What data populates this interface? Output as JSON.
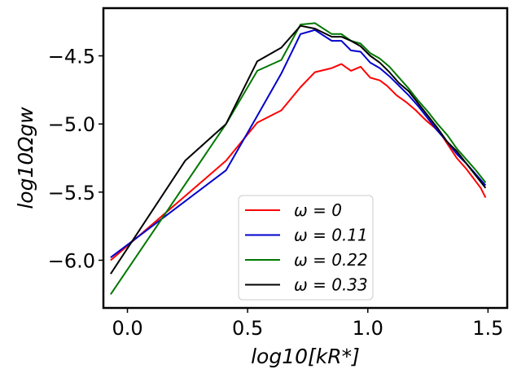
{
  "chart_data": {
    "type": "line",
    "title": "",
    "xlabel": "log10[kR*]",
    "ylabel": "log10Ωgw",
    "xlim": [
      -0.1,
      1.58
    ],
    "ylim": [
      -6.35,
      -4.15
    ],
    "xticks": [
      0.0,
      0.5,
      1.0,
      1.5
    ],
    "xtick_labels": [
      "0.0",
      "0.5",
      "1.0",
      "1.5"
    ],
    "yticks": [
      -6.0,
      -5.5,
      -5.0,
      -4.5
    ],
    "ytick_labels": [
      "−6.0",
      "−5.5",
      "−5.0",
      "−4.5"
    ],
    "grid": false,
    "legend_position": "lower-center",
    "series": [
      {
        "name": "ω = 0",
        "color": "#ff0000",
        "x": [
          -0.07,
          0.41,
          0.54,
          0.64,
          0.72,
          0.78,
          0.85,
          0.89,
          0.93,
          0.97,
          1.01,
          1.05,
          1.08,
          1.12,
          1.16,
          1.2,
          1.24,
          1.28,
          1.31,
          1.34,
          1.37,
          1.41,
          1.44,
          1.47,
          1.49
        ],
        "y": [
          -6.0,
          -5.27,
          -4.99,
          -4.9,
          -4.73,
          -4.62,
          -4.59,
          -4.56,
          -4.61,
          -4.58,
          -4.66,
          -4.68,
          -4.72,
          -4.79,
          -4.84,
          -4.9,
          -4.97,
          -5.03,
          -5.09,
          -5.17,
          -5.25,
          -5.33,
          -5.4,
          -5.47,
          -5.54
        ]
      },
      {
        "name": "ω = 0.11",
        "color": "#0000cc",
        "x": [
          -0.07,
          0.41,
          0.54,
          0.64,
          0.72,
          0.78,
          0.85,
          0.89,
          0.93,
          0.97,
          1.01,
          1.05,
          1.09,
          1.13,
          1.17,
          1.21,
          1.25,
          1.29,
          1.33,
          1.37,
          1.41,
          1.45,
          1.49
        ],
        "y": [
          -5.98,
          -5.34,
          -4.94,
          -4.63,
          -4.34,
          -4.31,
          -4.39,
          -4.39,
          -4.46,
          -4.47,
          -4.55,
          -4.59,
          -4.65,
          -4.72,
          -4.79,
          -4.87,
          -4.96,
          -5.05,
          -5.13,
          -5.22,
          -5.29,
          -5.37,
          -5.45
        ]
      },
      {
        "name": "ω = 0.22",
        "color": "#007700",
        "x": [
          -0.07,
          0.41,
          0.54,
          0.64,
          0.72,
          0.78,
          0.85,
          0.89,
          0.93,
          0.97,
          1.01,
          1.05,
          1.09,
          1.13,
          1.17,
          1.21,
          1.25,
          1.29,
          1.33,
          1.37,
          1.41,
          1.45,
          1.49
        ],
        "y": [
          -6.25,
          -5.0,
          -4.61,
          -4.53,
          -4.27,
          -4.26,
          -4.34,
          -4.34,
          -4.39,
          -4.41,
          -4.48,
          -4.52,
          -4.58,
          -4.66,
          -4.74,
          -4.83,
          -4.91,
          -5.0,
          -5.08,
          -5.18,
          -5.26,
          -5.34,
          -5.43
        ]
      },
      {
        "name": "ω = 0.33",
        "color": "#000000",
        "x": [
          -0.07,
          0.24,
          0.41,
          0.54,
          0.64,
          0.72,
          0.78,
          0.85,
          0.89,
          0.93,
          0.97,
          1.01,
          1.05,
          1.09,
          1.13,
          1.17,
          1.21,
          1.25,
          1.29,
          1.33,
          1.37,
          1.41,
          1.45,
          1.49
        ],
        "y": [
          -6.1,
          -5.27,
          -5.0,
          -4.54,
          -4.44,
          -4.28,
          -4.3,
          -4.36,
          -4.36,
          -4.39,
          -4.43,
          -4.5,
          -4.55,
          -4.62,
          -4.7,
          -4.76,
          -4.85,
          -4.94,
          -5.03,
          -5.13,
          -5.2,
          -5.29,
          -5.38,
          -5.47
        ]
      }
    ]
  }
}
